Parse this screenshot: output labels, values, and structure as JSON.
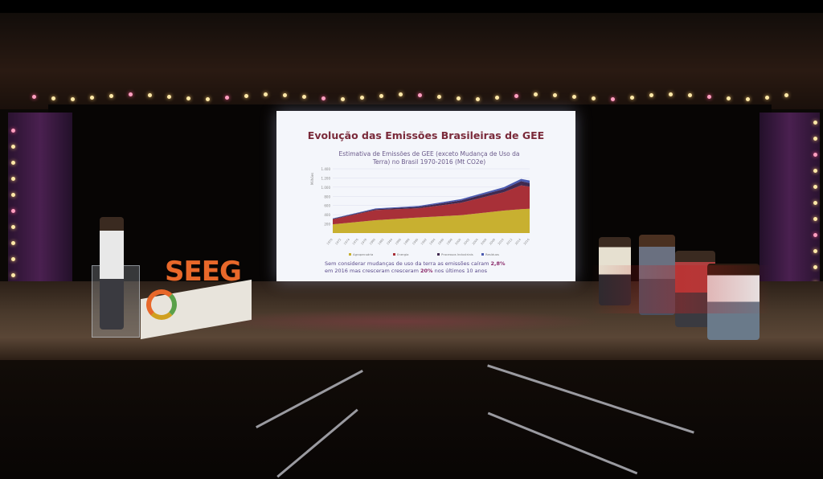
{
  "slide": {
    "title": "Evolução das Emissões Brasileiras de GEE",
    "chart_title_1": "Estimativa de Emissões de GEE (exceto Mudança de Uso da",
    "chart_title_2": "Terra) no Brasil 1970-2016  (Mt CO2e)",
    "footer_1": "Sem considerar mudanças de uso da terra as emissões caíram ",
    "footer_1_bold": "2,8%",
    "footer_2": "em 2016 mas cresceram cresceram ",
    "footer_2_bold": "20%",
    "footer_2_end": " nos últimos 10 anos",
    "chart": {
      "type": "area",
      "ylabel": "Milhões",
      "yticks": [
        "200",
        "400",
        "600",
        "800",
        "1.000",
        "1.200",
        "1.400"
      ],
      "ylim": [
        0,
        1400
      ],
      "x": [
        1970,
        1980,
        1990,
        2000,
        2010,
        2014,
        2016
      ],
      "xticks": [
        "1970",
        "1972",
        "1974",
        "1976",
        "1978",
        "1980",
        "1982",
        "1984",
        "1986",
        "1988",
        "1990",
        "1992",
        "1994",
        "1996",
        "1998",
        "2000",
        "2002",
        "2004",
        "2006",
        "2008",
        "2010",
        "2012",
        "2014",
        "2016"
      ],
      "series": [
        {
          "name": "Agropecuária",
          "color": "#c8b030",
          "values": [
            190,
            280,
            340,
            390,
            490,
            520,
            530
          ]
        },
        {
          "name": "Energia",
          "color": "#a83038",
          "values": [
            110,
            220,
            200,
            270,
            400,
            520,
            480
          ]
        },
        {
          "name": "Processos Industriais",
          "color": "#402a50",
          "values": [
            10,
            20,
            30,
            50,
            70,
            90,
            80
          ]
        },
        {
          "name": "Resíduos",
          "color": "#4a5ab0",
          "values": [
            10,
            15,
            20,
            30,
            40,
            50,
            55
          ]
        }
      ]
    }
  },
  "stage": {
    "logo_text": "SEEG"
  }
}
